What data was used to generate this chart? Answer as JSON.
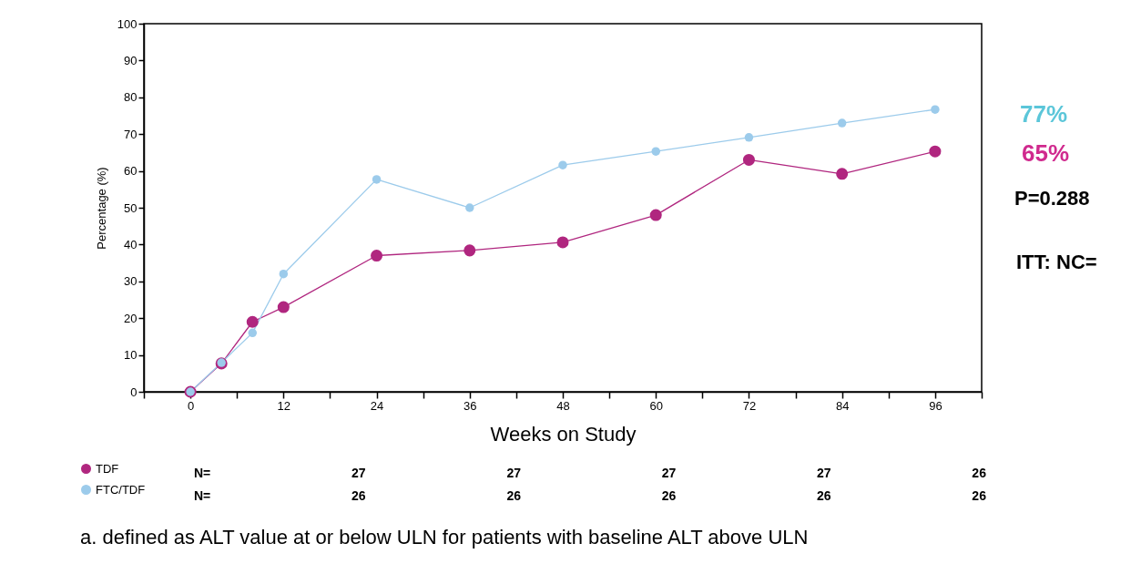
{
  "chart_data": {
    "type": "line",
    "xlabel": "Weeks on Study",
    "ylabel": "Percentage (%)",
    "x": [
      0,
      4,
      8,
      12,
      24,
      36,
      48,
      60,
      72,
      84,
      96
    ],
    "series": [
      {
        "name": "TDF",
        "color": "#b0267f",
        "values": [
          0,
          7.7,
          19,
          23,
          37,
          38.4,
          40.6,
          48,
          63,
          59.2,
          65.3
        ]
      },
      {
        "name": "FTC/TDF",
        "color": "#9ccbeb",
        "values": [
          0,
          7.9,
          16,
          32,
          57.7,
          50,
          61.6,
          65.3,
          69.1,
          73,
          76.7
        ]
      }
    ],
    "xlim": [
      -6,
      102
    ],
    "xticks": [
      {
        "value": -6,
        "label": null
      },
      0,
      {
        "value": 6,
        "label": null
      },
      12,
      {
        "value": 18,
        "label": null
      },
      24,
      {
        "value": 30,
        "label": null
      },
      36,
      {
        "value": 42,
        "label": null
      },
      48,
      {
        "value": 54,
        "label": null
      },
      60,
      {
        "value": 66,
        "label": null
      },
      72,
      {
        "value": 78,
        "label": null
      },
      84,
      {
        "value": 90,
        "label": null
      },
      96,
      {
        "value": 102,
        "label": null
      }
    ],
    "ylim": [
      0,
      100
    ],
    "yticks": [
      0,
      10,
      20,
      30,
      40,
      50,
      60,
      70,
      80,
      90,
      100
    ],
    "grid": false,
    "legend": "bottom left",
    "marker": "circle",
    "line_style": "solid",
    "annotations": [
      "77%",
      "65%",
      "P=0.288",
      "ITT: NC=",
      "N=  27  27  27  27  26",
      "N=  26  26  26  26  26",
      "a. defined as ALT value at or below ULN for patients with baseline ALT above ULN"
    ]
  }
}
